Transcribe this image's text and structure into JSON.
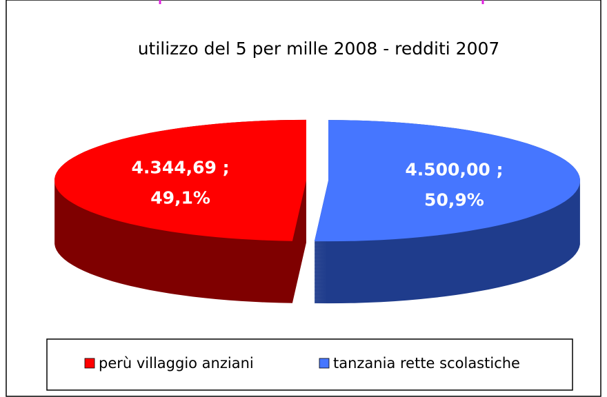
{
  "chart_data": {
    "type": "pie",
    "title": "utilizzo del 5 per mille 2008 - redditi 2007",
    "categories": [
      "perù villaggio anziani",
      "tanzania rette scolastiche"
    ],
    "values": [
      4344.69,
      4500.0
    ],
    "value_labels": [
      "4.344,69 ;",
      "4.500,00 ;"
    ],
    "percents": [
      49.1,
      50.9
    ],
    "percent_labels": [
      "49,1%",
      "50,9%"
    ],
    "colors": [
      "#ff0000",
      "#4676ff"
    ],
    "side_colors": [
      "#7f0000",
      "#1f3c8c"
    ],
    "legend": "bottom"
  }
}
